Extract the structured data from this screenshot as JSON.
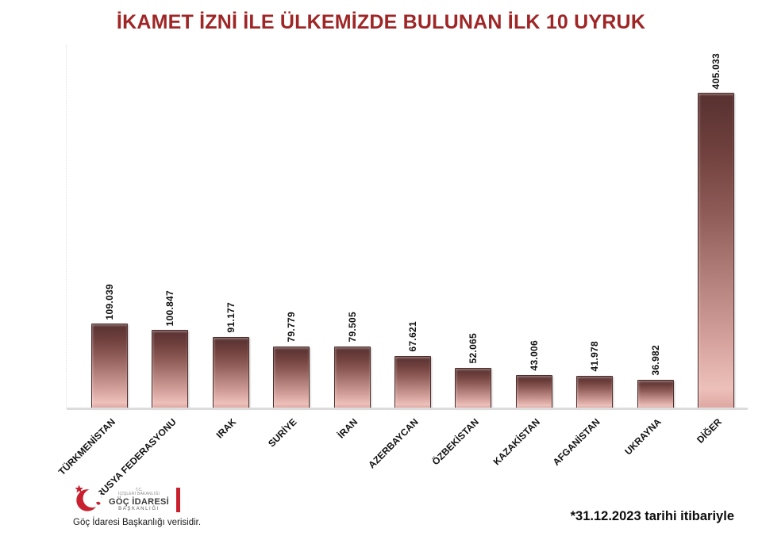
{
  "title": "İKAMET İZNİ İLE ÜLKEMİZDE BULUNAN İLK 10 UYRUK",
  "chart_data": {
    "type": "bar",
    "title": "İKAMET İZNİ İLE ÜLKEMİZDE BULUNAN İLK 10 UYRUK",
    "categories": [
      "TÜRKMENİSTAN",
      "RUSYA FEDERASYONU",
      "IRAK",
      "SURİYE",
      "İRAN",
      "AZERBAYCAN",
      "ÖZBEKİSTAN",
      "KAZAKİSTAN",
      "AFGANİSTAN",
      "UKRAYNA",
      "DİĞER"
    ],
    "values": [
      109039,
      100847,
      91177,
      79779,
      79505,
      67621,
      52065,
      43006,
      41978,
      36982,
      405033
    ],
    "value_labels": [
      "109.039",
      "100.847",
      "91.177",
      "79.779",
      "79.505",
      "67.621",
      "52.065",
      "43.006",
      "41.978",
      "36.982",
      "405.033"
    ],
    "xlabel": "",
    "ylabel": "",
    "ylim": [
      0,
      405033
    ],
    "grid": false,
    "legend": false,
    "bar_color_top": "#573130",
    "bar_color_bottom": "#dfa7a2",
    "value_label_rotation": 90,
    "category_label_rotation": 45
  },
  "footer": {
    "note": "*31.12.2023 tarihi itibariyle",
    "source_caption": "Göç İdaresi Başkanlığı verisidir.",
    "logo": {
      "line1": "T.C.",
      "line2": "İÇİŞLERİ BAKANLIĞI",
      "line3": "GÖÇ İDARESİ",
      "line4": "BAŞKANLIĞI"
    }
  },
  "colors": {
    "title_red": "#9e2626",
    "logo_red": "#c8202f",
    "axis_gray": "#dcdcdc"
  }
}
